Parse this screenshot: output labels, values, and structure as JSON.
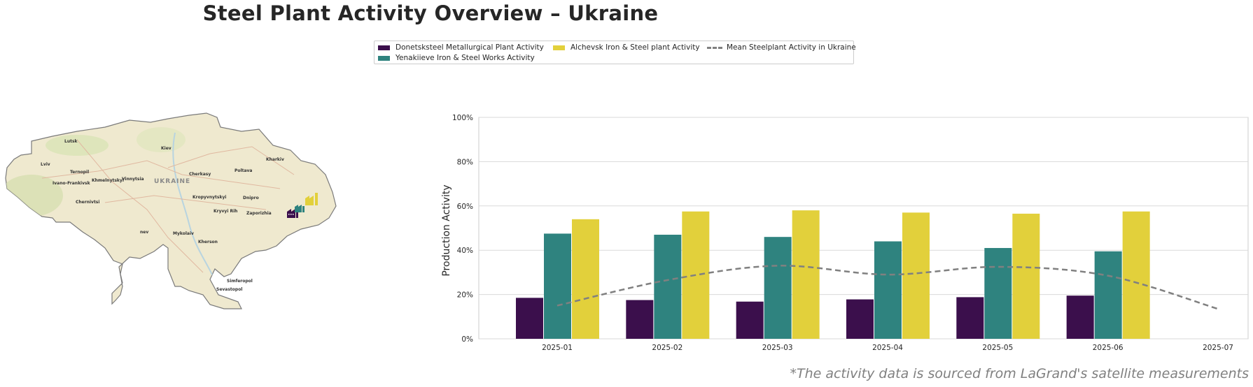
{
  "title": "Steel Plant Activity Overview – Ukraine",
  "legend": {
    "items": [
      {
        "label": "Donetsksteel Metallurgical Plant Activity",
        "color": "#3b0f4c"
      },
      {
        "label": "Yenakiieve Iron & Steel Works Activity",
        "color": "#2f837f"
      },
      {
        "label": "Alchevsk Iron & Steel plant Activity",
        "color": "#e2d03b"
      },
      {
        "label": "Mean Steelplant Activity in Ukraine",
        "color": "#808080"
      }
    ]
  },
  "map": {
    "country_label": "UKRAINE",
    "cities": [
      "Lutsk",
      "Kiev",
      "Kharkiv",
      "Lviv",
      "Ternopil",
      "Khmelnytskyi",
      "Vinnytsia",
      "Ivano-Frankivsk",
      "Cherkasy",
      "Poltava",
      "Chernivtsi",
      "Kropyvnytskyi",
      "Dnipro",
      "Kryvyi Rih",
      "Zaporizhia",
      "Mykolaiv",
      "Kherson",
      "Simferopol",
      "Sevastopol",
      "nev"
    ],
    "plant_icons": [
      "factory-icon-donetsksteel",
      "factory-icon-yenakiieve",
      "factory-icon-alchevsk"
    ]
  },
  "chart_data": {
    "type": "bar",
    "categories": [
      "2025-01",
      "2025-02",
      "2025-03",
      "2025-04",
      "2025-05",
      "2025-06",
      "2025-07"
    ],
    "series": [
      {
        "name": "Donetsksteel Metallurgical Plant Activity",
        "values": [
          18.5,
          17.5,
          16.8,
          17.8,
          18.8,
          19.5,
          null
        ],
        "color": "#3b0f4c"
      },
      {
        "name": "Yenakiieve Iron & Steel Works Activity",
        "values": [
          47.5,
          47.0,
          46.0,
          44.0,
          41.0,
          39.5,
          null
        ],
        "color": "#2f837f"
      },
      {
        "name": "Alchevsk Iron & Steel plant Activity",
        "values": [
          54.0,
          57.5,
          58.0,
          57.0,
          56.5,
          57.5,
          null
        ],
        "color": "#e2d03b"
      }
    ],
    "mean_line": {
      "name": "Mean Steelplant Activity in Ukraine",
      "values": [
        15.0,
        26.5,
        33.0,
        29.0,
        32.5,
        28.5,
        13.5
      ],
      "color": "#808080",
      "style": "dashed"
    },
    "ylabel": "Production Activity",
    "xlabel": "",
    "ylim": [
      0,
      100
    ],
    "yticks": [
      "0%",
      "20%",
      "40%",
      "60%",
      "80%",
      "100%"
    ],
    "ytick_values": [
      0,
      20,
      40,
      60,
      80,
      100
    ],
    "grid": "horizontal",
    "legend_position": "top-center"
  },
  "source_note": "*The activity data is sourced from LaGrand's satellite measurements"
}
